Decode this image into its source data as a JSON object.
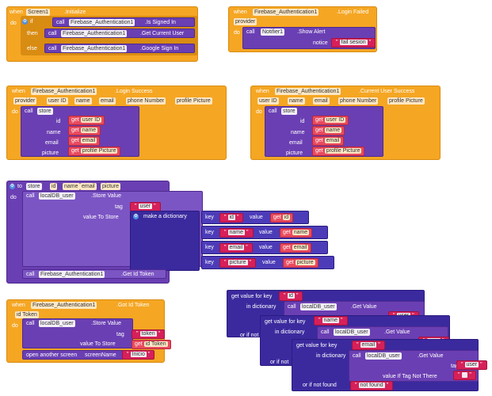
{
  "screen_init": {
    "when": "when",
    "component": "Screen1",
    "event": ".Initialize",
    "do": "do",
    "if": "if",
    "then": "then",
    "else": "else",
    "call": "call",
    "fb": "Firebase_Authentication1",
    "is_signed_in": ".Is Signed In",
    "get_current_user": ".Get Current User",
    "google_sign_in": ".Google Sign In"
  },
  "login_failed": {
    "when": "when",
    "component": "Firebase_Authentication1",
    "event": ".Login Failed",
    "param": "provider",
    "do": "do",
    "call": "call",
    "notifier": "Notifier1",
    "method": ".Show Alert",
    "notice": "notice",
    "text": "fail sesion"
  },
  "login_success": {
    "when": "when",
    "component": "Firebase_Authentication1",
    "event": ".Login Success",
    "params": [
      "provider",
      "user ID",
      "name",
      "email",
      "phone Number",
      "profile Picture"
    ],
    "do": "do",
    "call": "call",
    "proc": "store",
    "args": [
      {
        "label": "id",
        "get": "get",
        "value": "user ID"
      },
      {
        "label": "name",
        "get": "get",
        "value": "name"
      },
      {
        "label": "email",
        "get": "get",
        "value": "email"
      },
      {
        "label": "picture",
        "get": "get",
        "value": "profile Picture"
      }
    ]
  },
  "current_user_success": {
    "when": "when",
    "component": "Firebase_Authentication1",
    "event": ".Current User Success",
    "params": [
      "user ID",
      "name",
      "email",
      "phone Number",
      "profile Picture"
    ],
    "do": "do",
    "call": "call",
    "proc": "store",
    "args": [
      {
        "label": "id",
        "get": "get",
        "value": "user ID"
      },
      {
        "label": "name",
        "get": "get",
        "value": "name"
      },
      {
        "label": "email",
        "get": "get",
        "value": "email"
      },
      {
        "label": "picture",
        "get": "get",
        "value": "profile Picture"
      }
    ]
  },
  "store_proc": {
    "to": "to",
    "name": "store",
    "params": [
      "id",
      "name",
      "email",
      "picture"
    ],
    "do": "do",
    "call": "call",
    "db": "localDB_user",
    "method": ".Store Value",
    "tag": "tag",
    "tag_value": "user",
    "value_to_store": "value To Store",
    "make_dict": "make a dictionary",
    "pairs": [
      {
        "key": "key",
        "k": "id",
        "value": "value",
        "get": "get",
        "v": "id"
      },
      {
        "key": "key",
        "k": "name",
        "value": "value",
        "get": "get",
        "v": "name"
      },
      {
        "key": "key",
        "k": "email",
        "value": "value",
        "get": "get",
        "v": "email"
      },
      {
        "key": "key",
        "k": "picture",
        "value": "value",
        "get": "get",
        "v": "picture"
      }
    ],
    "call2": "call",
    "fb": "Firebase_Authentication1",
    "get_id_token": ".Get Id Token"
  },
  "got_id_token": {
    "when": "when",
    "component": "Firebase_Authentication1",
    "event": ".Got Id Token",
    "param": "id Token",
    "do": "do",
    "call": "call",
    "db": "localDB_user",
    "method": ".Store Value",
    "tag": "tag",
    "tag_value": "token",
    "value_to_store": "value To Store",
    "get": "get",
    "get_value": "id Token",
    "open_screen": "open another screen",
    "screen_name": "screenName",
    "screen_value": "Inicio"
  },
  "lookup": {
    "blocks": [
      {
        "gvk": "get value for key",
        "key": "id",
        "in_dict": "in dictionary",
        "call": "call",
        "db": "localDB_user",
        "method": ".Get Value",
        "tag": "tag",
        "tag_value": "user",
        "or_if": "or if not"
      },
      {
        "gvk": "get value for key",
        "key": "name",
        "in_dict": "in dictionary",
        "call": "call",
        "db": "localDB_user",
        "method": ".Get Value",
        "tag": "tag",
        "tag_value": "user",
        "or_if": "or if not"
      },
      {
        "gvk": "get value for key",
        "key": "email",
        "in_dict": "in dictionary",
        "call": "call",
        "db": "localDB_user",
        "method": ".Get Value",
        "tag": "tag",
        "tag_value": "user",
        "or_if": "or if not"
      },
      {
        "gvk": "get value for key",
        "key": "email",
        "in_dict": "in dictionary",
        "call": "call",
        "db": "localDB_user",
        "method": ".Get Value",
        "tag": "tag",
        "tag_value": "user",
        "vitnt": "value If Tag Not There",
        "or_if": "or if not found",
        "nf": "not found"
      }
    ]
  }
}
